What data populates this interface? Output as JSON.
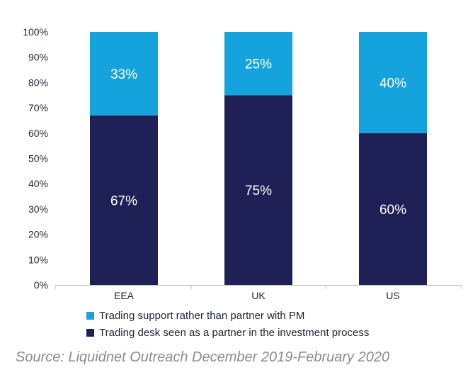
{
  "chart_data": {
    "type": "bar",
    "stacked": true,
    "categories": [
      "EEA",
      "UK",
      "US"
    ],
    "series": [
      {
        "name": "Trading desk seen as a partner in the investment process",
        "values": [
          67,
          75,
          60
        ],
        "labels": [
          "67%",
          "75%",
          "60%"
        ],
        "color": "#1f2156"
      },
      {
        "name": "Trading support rather than partner with PM",
        "values": [
          33,
          25,
          40
        ],
        "labels": [
          "33%",
          "25%",
          "40%"
        ],
        "color": "#15a3de"
      }
    ],
    "yticks": [
      "0%",
      "10%",
      "20%",
      "30%",
      "40%",
      "50%",
      "60%",
      "70%",
      "80%",
      "90%",
      "100%"
    ],
    "ylim": [
      0,
      100
    ],
    "grid": false,
    "legend_position": "bottom"
  },
  "legend": [
    {
      "label": "Trading support rather than partner with PM",
      "color": "#15a3de"
    },
    {
      "label": "Trading desk seen as a partner in the investment process",
      "color": "#1f2156"
    }
  ],
  "source": "Source: Liquidnet Outreach December 2019-February 2020"
}
